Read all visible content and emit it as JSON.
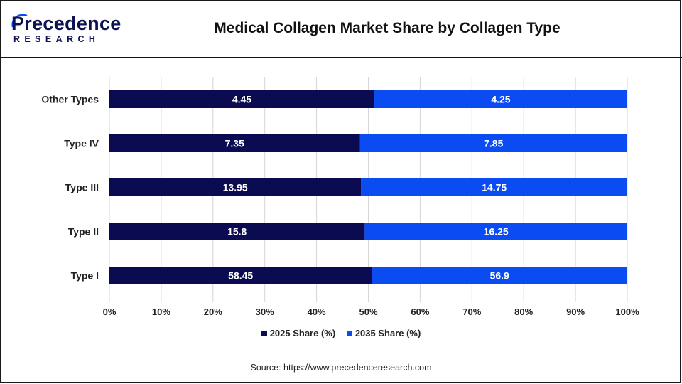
{
  "brand": {
    "name": "Precedence",
    "sub": "RESEARCH"
  },
  "title": "Medical Collagen Market Share by Collagen Type",
  "source": "Source: https://www.precedenceresearch.com",
  "colors": {
    "series_2025": "#0b0b52",
    "series_2035": "#0a4cf2",
    "grid": "#d6d6d6",
    "brand": "#0d1250"
  },
  "chart_data": {
    "type": "bar",
    "orientation": "horizontal",
    "stacked": "percent",
    "categories": [
      "Other Types",
      "Type IV",
      "Type III",
      "Type II",
      "Type I"
    ],
    "series": [
      {
        "name": "2025 Share (%)",
        "values": [
          4.45,
          7.35,
          13.95,
          15.8,
          58.45
        ]
      },
      {
        "name": "2035 Share (%)",
        "values": [
          4.25,
          7.85,
          14.75,
          16.25,
          56.9
        ]
      }
    ],
    "x_ticks": [
      "0%",
      "10%",
      "20%",
      "30%",
      "40%",
      "50%",
      "60%",
      "70%",
      "80%",
      "90%",
      "100%"
    ],
    "xlim": [
      0,
      100
    ],
    "grid": "vertical",
    "legend_position": "bottom"
  }
}
